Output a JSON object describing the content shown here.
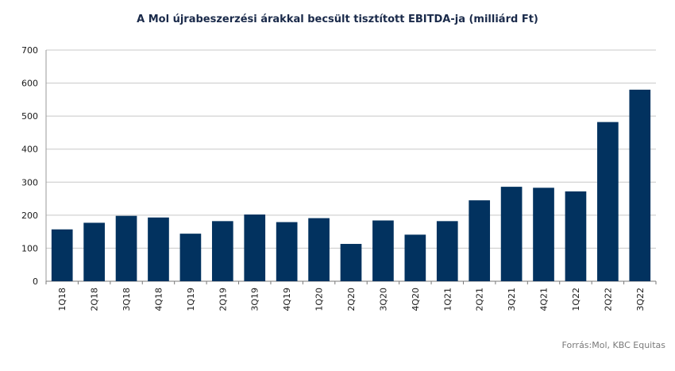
{
  "chart_data": {
    "type": "bar",
    "title": "A Mol újrabeszerzési árakkal becsült tisztított EBITDA-ja (milliárd Ft)",
    "categories": [
      "1Q18",
      "2Q18",
      "3Q18",
      "4Q18",
      "1Q19",
      "2Q19",
      "3Q19",
      "4Q19",
      "1Q20",
      "2Q20",
      "3Q20",
      "4Q20",
      "1Q21",
      "2Q21",
      "3Q21",
      "4Q21",
      "1Q22",
      "2Q22",
      "3Q22"
    ],
    "values": [
      157,
      177,
      198,
      193,
      144,
      182,
      202,
      179,
      191,
      113,
      184,
      141,
      182,
      245,
      286,
      283,
      272,
      482,
      580
    ],
    "ylim": [
      0,
      700
    ],
    "yticks": [
      0,
      100,
      200,
      300,
      400,
      500,
      600,
      700
    ],
    "xlabel": "",
    "ylabel": "",
    "grid": true,
    "bar_color": "#02325f",
    "grid_color": "#c8c8c8"
  },
  "source": "Forrás:Mol, KBC Equitas"
}
